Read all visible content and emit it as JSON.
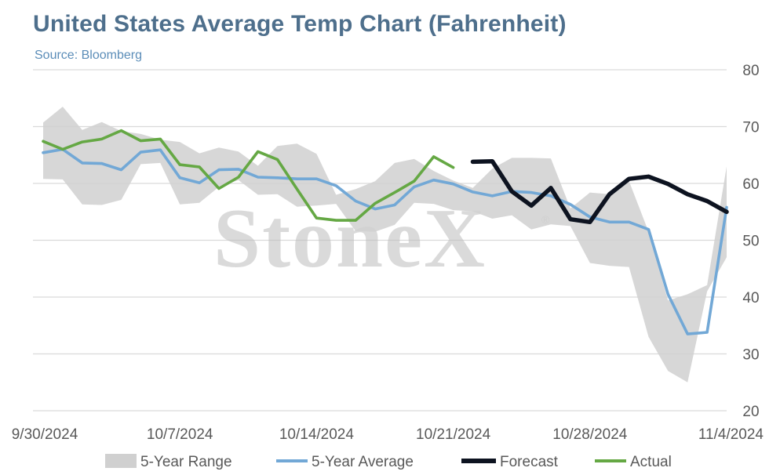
{
  "header": {
    "title": "United States Average Temp Chart (Fahrenheit)",
    "subtitle": "Source: Bloomberg"
  },
  "watermark": {
    "text": "StoneX",
    "mark": "®"
  },
  "chart_data": {
    "type": "line",
    "ylim": [
      20,
      80
    ],
    "y_ticks": [
      20,
      30,
      40,
      50,
      60,
      70,
      80
    ],
    "y_axis_side": "right",
    "x_tick_labels": [
      "9/30/2024",
      "10/7/2024",
      "10/14/2024",
      "10/21/2024",
      "10/28/2024",
      "11/4/2024"
    ],
    "x_tick_days": [
      0,
      7,
      14,
      21,
      28,
      35
    ],
    "grid": true,
    "legend_position": "bottom",
    "colors": {
      "range": "#d0d0d0",
      "average": "#72a8d6",
      "forecast": "#0d1320",
      "actual": "#65a844",
      "grid": "#d9d9d9",
      "title": "#4e6f8c",
      "subtitle": "#5b8db8"
    },
    "range": {
      "name": "5-Year Range",
      "x": [
        0,
        1,
        2,
        3,
        4,
        5,
        6,
        7,
        8,
        9,
        10,
        11,
        12,
        13,
        14,
        15,
        16,
        17,
        18,
        19,
        20,
        21,
        22,
        23,
        24,
        25,
        26,
        27,
        28,
        29,
        30,
        31,
        32,
        33,
        34,
        35
      ],
      "low": [
        60.8,
        60.7,
        56.3,
        56.2,
        57.1,
        63.4,
        63.6,
        56.3,
        56.6,
        59.4,
        60.6,
        58.0,
        58.1,
        55.9,
        56.1,
        56.4,
        51.6,
        51.5,
        52.7,
        56.6,
        56.4,
        55.3,
        55.1,
        53.8,
        54.4,
        51.9,
        52.8,
        52.5,
        46.0,
        45.5,
        45.3,
        33.0,
        27.0,
        25.0,
        41.0,
        47.0
      ],
      "high": [
        70.7,
        73.5,
        69.4,
        70.8,
        69.2,
        68.7,
        67.7,
        67.3,
        65.3,
        66.3,
        65.6,
        63.1,
        66.6,
        67.0,
        65.2,
        58.0,
        59.0,
        60.4,
        63.6,
        64.3,
        62.2,
        60.5,
        59.2,
        62.6,
        64.5,
        64.5,
        64.4,
        55.6,
        58.4,
        58.1,
        60.4,
        51.5,
        39.4,
        40.5,
        42.1,
        63.0
      ]
    },
    "series": [
      {
        "name": "5-Year Average",
        "x": [
          0,
          1,
          2,
          3,
          4,
          5,
          6,
          7,
          8,
          9,
          10,
          11,
          12,
          13,
          14,
          15,
          16,
          17,
          18,
          19,
          20,
          21,
          22,
          23,
          24,
          25,
          26,
          27,
          28,
          29,
          30,
          31,
          32,
          33,
          34,
          35
        ],
        "values": [
          65.4,
          66.0,
          63.6,
          63.5,
          62.4,
          65.5,
          65.9,
          61.0,
          60.1,
          62.4,
          62.5,
          61.1,
          61.0,
          60.8,
          60.8,
          59.6,
          56.9,
          55.5,
          56.2,
          59.4,
          60.6,
          59.9,
          58.5,
          57.8,
          58.6,
          58.4,
          57.8,
          56.3,
          54.1,
          53.2,
          53.2,
          51.9,
          40.5,
          33.5,
          33.8,
          55.8
        ]
      },
      {
        "name": "Forecast",
        "x": [
          22,
          23,
          24,
          25,
          26,
          27,
          28,
          29,
          30,
          31,
          32,
          33,
          34,
          35
        ],
        "values": [
          63.8,
          63.9,
          58.6,
          56.1,
          59.2,
          53.7,
          53.2,
          58.1,
          60.8,
          61.2,
          59.9,
          58.1,
          56.9,
          55.0
        ]
      },
      {
        "name": "Actual",
        "x": [
          0,
          1,
          2,
          3,
          4,
          5,
          6,
          7,
          8,
          9,
          10,
          11,
          12,
          13,
          14,
          15,
          16,
          17,
          18,
          19,
          20,
          21
        ],
        "values": [
          67.4,
          66.0,
          67.3,
          67.8,
          69.3,
          67.5,
          67.8,
          63.3,
          62.9,
          59.1,
          61.1,
          65.6,
          64.2,
          59.0,
          53.9,
          53.5,
          53.5,
          56.5,
          58.4,
          60.4,
          64.7,
          62.8
        ]
      }
    ]
  }
}
